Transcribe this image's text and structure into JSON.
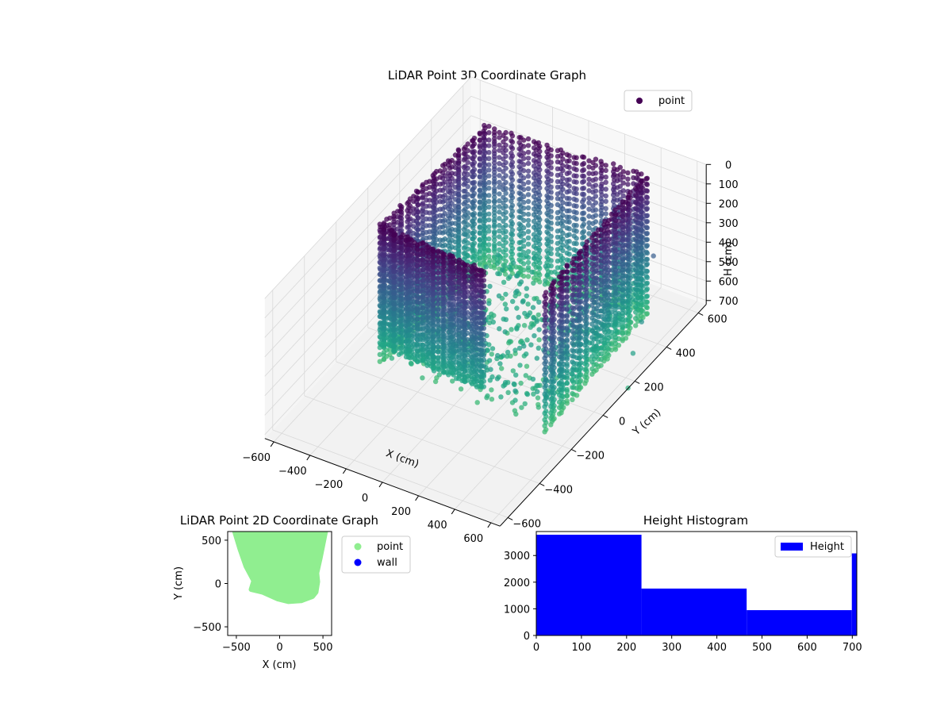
{
  "chart_data": [
    {
      "type": "scatter",
      "projection": "3d",
      "title": "LiDAR Point 3D Coordinate Graph",
      "xlabel": "X (cm)",
      "ylabel": "Y (cm)",
      "zlabel": "H (cm)",
      "xlim": [
        -650,
        650
      ],
      "ylim": [
        -650,
        650
      ],
      "zlim": [
        0,
        720
      ],
      "z_inverted": true,
      "x_ticks": [
        -600,
        -400,
        -200,
        0,
        200,
        400,
        600
      ],
      "x_tick_labels": [
        "−600",
        "−400",
        "−200",
        "0",
        "200",
        "400",
        "600"
      ],
      "y_ticks": [
        -600,
        -400,
        -200,
        0,
        200,
        400,
        600
      ],
      "y_tick_labels": [
        "−600",
        "−400",
        "−200",
        "0",
        "200",
        "400",
        "600"
      ],
      "z_ticks": [
        0,
        100,
        200,
        300,
        400,
        500,
        600,
        700
      ],
      "z_tick_labels": [
        "0",
        "100",
        "200",
        "300",
        "400",
        "500",
        "600",
        "700"
      ],
      "grid": true,
      "legend": {
        "position": "upper-right",
        "entries": [
          {
            "label": "point",
            "color": "#440154"
          }
        ]
      },
      "colormap": "viridis",
      "color_by": "H",
      "series": [
        {
          "name": "point",
          "shape": "U-shaped enclosure of scanned walls; points from X ≈ -450..500, Y ≈ -200..600, H ≈ 0..700",
          "walls": [
            {
              "from": [
                -450,
                -150
              ],
              "to": [
                -400,
                450
              ],
              "h_range": [
                0,
                700
              ]
            },
            {
              "from": [
                -400,
                450
              ],
              "to": [
                450,
                500
              ],
              "h_range": [
                0,
                700
              ]
            },
            {
              "from": [
                450,
                500
              ],
              "to": [
                480,
                -180
              ],
              "h_range": [
                0,
                700
              ]
            },
            {
              "from": [
                -450,
                -150
              ],
              "to": [
                150,
                -180
              ],
              "h_range": [
                0,
                600
              ]
            }
          ]
        }
      ]
    },
    {
      "type": "scatter",
      "title": "LiDAR Point 2D Coordinate Graph",
      "xlabel": "X (cm)",
      "ylabel": "Y (cm)",
      "xlim": [
        -600,
        600
      ],
      "ylim": [
        -600,
        600
      ],
      "x_ticks": [
        -500,
        0,
        500
      ],
      "x_tick_labels": [
        "−500",
        "0",
        "500"
      ],
      "y_ticks": [
        -500,
        0,
        500
      ],
      "y_tick_labels": [
        "−500",
        "0",
        "500"
      ],
      "legend": {
        "position": "outside-right",
        "entries": [
          {
            "label": "point",
            "color": "#90ee90"
          },
          {
            "label": "wall",
            "color": "#0000ff"
          }
        ]
      },
      "series": [
        {
          "name": "point",
          "color": "#90ee90",
          "outline": [
            [
              -520,
              600
            ],
            [
              530,
              600
            ],
            [
              500,
              450
            ],
            [
              470,
              300
            ],
            [
              430,
              120
            ],
            [
              440,
              20
            ],
            [
              420,
              -100
            ],
            [
              380,
              -150
            ],
            [
              250,
              -200
            ],
            [
              100,
              -210
            ],
            [
              -20,
              -180
            ],
            [
              -200,
              -100
            ],
            [
              -330,
              -70
            ],
            [
              -300,
              30
            ],
            [
              -390,
              200
            ],
            [
              -460,
              400
            ]
          ]
        },
        {
          "name": "wall",
          "color": "#0000ff",
          "points": []
        }
      ]
    },
    {
      "type": "bar",
      "title": "Height Histogram",
      "xlabel": "",
      "ylabel": "",
      "xlim": [
        0,
        710
      ],
      "ylim": [
        0,
        3900
      ],
      "x_ticks": [
        0,
        100,
        200,
        300,
        400,
        500,
        600,
        700
      ],
      "x_tick_labels": [
        "0",
        "100",
        "200",
        "300",
        "400",
        "500",
        "600",
        "700"
      ],
      "y_ticks": [
        0,
        1000,
        2000,
        3000
      ],
      "y_tick_labels": [
        "0",
        "1000",
        "2000",
        "3000"
      ],
      "legend": {
        "position": "upper-right",
        "entries": [
          {
            "label": "Height",
            "color": "#0000ff"
          }
        ]
      },
      "series": [
        {
          "name": "Height",
          "color": "#0000ff",
          "bins": [
            {
              "from": 0,
              "to": 233,
              "value": 3780
            },
            {
              "from": 233,
              "to": 466,
              "value": 1760
            },
            {
              "from": 466,
              "to": 699,
              "value": 950
            },
            {
              "from": 699,
              "to": 710,
              "value": 3080
            }
          ]
        }
      ]
    }
  ]
}
